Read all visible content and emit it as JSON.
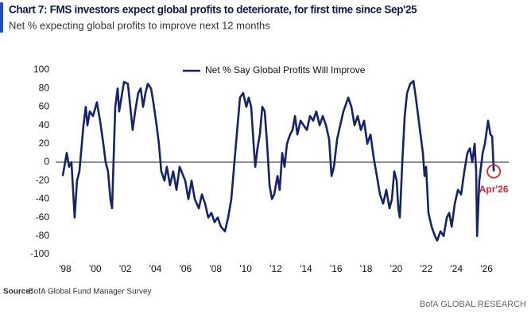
{
  "chart_data": {
    "type": "line",
    "title": "Chart 7: FMS investors expect global profits to deteriorate, for first time since Sep'25",
    "subtitle": "Net % expecting global profits to improve next 12 months",
    "source_label": "Source:",
    "source": "BofA Global Fund Manager Survey",
    "brand": "BofA GLOBAL RESEARCH",
    "annotation": "Apr'26",
    "legend": "top-center",
    "xlim": [
      1997.37,
      2027.58
    ],
    "xticks": [
      {
        "value": 1998,
        "label": "'98"
      },
      {
        "value": 2000,
        "label": "'00"
      },
      {
        "value": 2002,
        "label": "'02"
      },
      {
        "value": 2004,
        "label": "'04"
      },
      {
        "value": 2006,
        "label": "'06"
      },
      {
        "value": 2008,
        "label": "'08"
      },
      {
        "value": 2010,
        "label": "'10"
      },
      {
        "value": 2012,
        "label": "'12"
      },
      {
        "value": 2014,
        "label": "'14"
      },
      {
        "value": 2016,
        "label": "'16"
      },
      {
        "value": 2018,
        "label": "'18"
      },
      {
        "value": 2020,
        "label": "'20"
      },
      {
        "value": 2022,
        "label": "'22"
      },
      {
        "value": 2024,
        "label": "'24"
      },
      {
        "value": 2026,
        "label": "'26"
      }
    ],
    "ylim": [
      -100,
      100
    ],
    "yticks": [
      -100,
      -80,
      -60,
      -40,
      -20,
      0,
      20,
      40,
      60,
      80,
      100
    ],
    "x": [
      1997.84,
      1998.11,
      1998.26,
      1998.42,
      1998.63,
      1998.79,
      1998.95,
      1999.22,
      1999.37,
      1999.48,
      1999.64,
      1999.85,
      2000.11,
      2000.32,
      2000.54,
      2000.69,
      2000.85,
      2001.01,
      2001.12,
      2001.33,
      2001.49,
      2001.59,
      2001.91,
      2002.17,
      2002.33,
      2002.49,
      2002.65,
      2002.86,
      2003.02,
      2003.18,
      2003.34,
      2003.49,
      2003.71,
      2003.86,
      2004.08,
      2004.23,
      2004.39,
      2004.6,
      2004.76,
      2004.97,
      2005.18,
      2005.4,
      2005.61,
      2005.98,
      2006.19,
      2006.4,
      2006.61,
      2006.88,
      2007.09,
      2007.3,
      2007.51,
      2007.72,
      2007.93,
      2008.14,
      2008.35,
      2008.62,
      2008.83,
      2009.04,
      2009.25,
      2009.46,
      2009.62,
      2009.83,
      2010.04,
      2010.2,
      2010.36,
      2010.52,
      2010.63,
      2010.78,
      2010.94,
      2011.1,
      2011.26,
      2011.42,
      2011.58,
      2011.74,
      2011.89,
      2012.11,
      2012.26,
      2012.42,
      2012.58,
      2012.74,
      2012.95,
      2013.11,
      2013.27,
      2013.43,
      2013.64,
      2013.85,
      2014.06,
      2014.27,
      2014.48,
      2014.69,
      2014.91,
      2015.12,
      2015.33,
      2015.54,
      2015.7,
      2015.86,
      2016.07,
      2016.28,
      2016.49,
      2016.81,
      2017.02,
      2017.23,
      2017.44,
      2017.65,
      2017.86,
      2018.08,
      2018.29,
      2018.5,
      2018.71,
      2018.92,
      2019.13,
      2019.34,
      2019.55,
      2019.71,
      2019.87,
      2020.03,
      2020.14,
      2020.24,
      2020.4,
      2020.56,
      2020.72,
      2020.93,
      2021.14,
      2021.3,
      2021.46,
      2021.61,
      2021.77,
      2021.88,
      2021.98,
      2022.14,
      2022.35,
      2022.57,
      2022.72,
      2022.94,
      2023.15,
      2023.36,
      2023.52,
      2023.68,
      2023.89,
      2024.1,
      2024.31,
      2024.52,
      2024.73,
      2024.89,
      2025.05,
      2025.21,
      2025.31,
      2025.37,
      2025.52,
      2025.74,
      2025.89,
      2026.1,
      2026.26,
      2026.37,
      2026.48
    ],
    "series": [
      {
        "name": "Net % Say Global Profits Will Improve",
        "color": "#14246b",
        "values": [
          -15,
          10,
          -5,
          0,
          -60,
          -20,
          -10,
          40,
          60,
          40,
          55,
          50,
          65,
          45,
          20,
          0,
          -10,
          -40,
          -50,
          60,
          80,
          55,
          87,
          85,
          60,
          35,
          55,
          75,
          80,
          60,
          75,
          85,
          80,
          65,
          40,
          20,
          -10,
          -20,
          -5,
          -25,
          -10,
          -30,
          -5,
          -20,
          -40,
          -20,
          -40,
          -50,
          -35,
          -45,
          -60,
          -55,
          -65,
          -60,
          -70,
          -75,
          -60,
          -40,
          0,
          40,
          70,
          75,
          60,
          70,
          60,
          20,
          -5,
          15,
          30,
          60,
          55,
          20,
          -25,
          -40,
          -35,
          -15,
          -30,
          10,
          -5,
          20,
          30,
          35,
          50,
          30,
          45,
          40,
          35,
          50,
          45,
          55,
          40,
          50,
          40,
          25,
          -15,
          -5,
          25,
          40,
          55,
          70,
          60,
          40,
          50,
          35,
          45,
          20,
          30,
          5,
          -15,
          -35,
          -45,
          -30,
          -50,
          -40,
          -10,
          -20,
          -50,
          -60,
          0,
          50,
          75,
          85,
          88,
          70,
          50,
          30,
          10,
          -15,
          -5,
          -55,
          -70,
          -80,
          -85,
          -75,
          -80,
          -60,
          -55,
          -70,
          -45,
          -30,
          -35,
          -10,
          10,
          15,
          0,
          20,
          -10,
          -80,
          -20,
          10,
          20,
          45,
          30,
          28,
          -10
        ]
      }
    ]
  }
}
